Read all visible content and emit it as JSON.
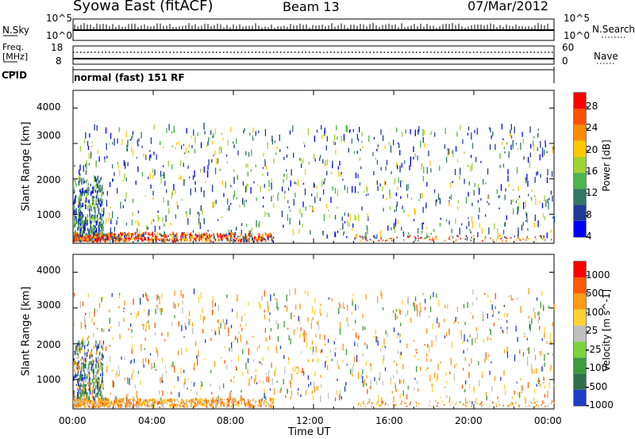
{
  "header": {
    "station": "Syowa East (fitACF)",
    "beam": "Beam 13",
    "date": "07/Mar/2012"
  },
  "noise_panel": {
    "left_label": "N.Sky",
    "right_label": "N.Search",
    "y_ticks": [
      "10^5",
      "10^0"
    ],
    "right_ticks": [
      "10^5",
      "10^0"
    ]
  },
  "freq_panel": {
    "left_label_1": "Freq.",
    "left_label_2": "[MHz]",
    "right_label": "Nave",
    "y_ticks": [
      "18",
      "8"
    ],
    "right_ticks": [
      "60",
      "0"
    ]
  },
  "cpid": {
    "label": "CPID",
    "value": "normal (fast) 151 RF"
  },
  "x_axis": {
    "label": "Time UT",
    "ticks": [
      "00:00",
      "04:00",
      "08:00",
      "12:00",
      "16:00",
      "20:00",
      "00:00"
    ]
  },
  "chart_data": [
    {
      "type": "heatmap",
      "title": "",
      "xlabel": "Time UT",
      "ylabel": "Slant Range [km]",
      "xlim": [
        0,
        24
      ],
      "ylim": [
        180,
        4500
      ],
      "y_ticks": [
        "4000",
        "3000",
        "2000",
        "1000"
      ],
      "colorbar": {
        "label": "Power [dB]",
        "range": [
          0,
          30
        ],
        "ticks": [
          "28",
          "24",
          "20",
          "16",
          "12",
          "8",
          "4"
        ],
        "colors": [
          "#0000ff",
          "#1e3c96",
          "#327864",
          "#4bb44b",
          "#a0d232",
          "#ffc800",
          "#ff8c00",
          "#ff5000",
          "#ff0000"
        ]
      }
    },
    {
      "type": "heatmap",
      "title": "",
      "xlabel": "Time UT",
      "ylabel": "Slant Range [km]",
      "xlim": [
        0,
        24
      ],
      "ylim": [
        180,
        4500
      ],
      "y_ticks": [
        "4000",
        "3000",
        "2000",
        "1000"
      ],
      "colorbar": {
        "label": "Velocity [m s^-1]",
        "ticks": [
          "1000",
          "500",
          "100",
          "25",
          "-25",
          "-100",
          "-500",
          "-1000"
        ],
        "colors": [
          "#1e3cc8",
          "#2f6f4a",
          "#3c9b3c",
          "#7bd23c",
          "#c0c0c0",
          "#ffd232",
          "#ff9b14",
          "#ff5a00",
          "#ff0000"
        ]
      }
    }
  ],
  "colors": {
    "axis": "#000000",
    "background": "#ffffff"
  }
}
